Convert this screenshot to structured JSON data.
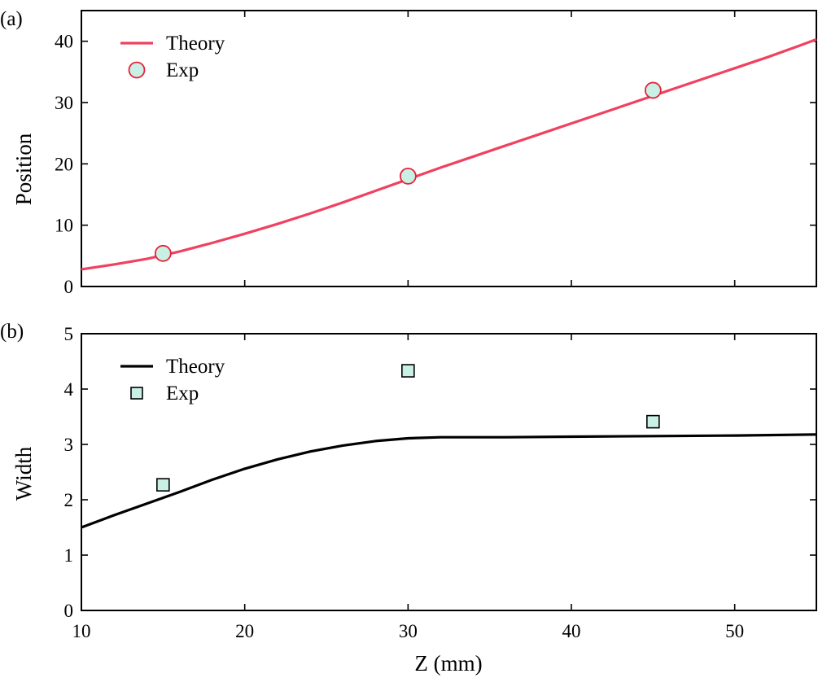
{
  "chart_data": [
    {
      "type": "line",
      "panel_label": "(a)",
      "xlabel": "",
      "ylabel": "Position",
      "xlim": [
        10,
        55
      ],
      "ylim": [
        0,
        45
      ],
      "xticks": [
        10,
        20,
        30,
        40,
        50
      ],
      "yticks": [
        0,
        10,
        20,
        30,
        40
      ],
      "legend_position": "top-left",
      "grid": false,
      "series": [
        {
          "name": "Theory",
          "kind": "line",
          "color": "#f0415f",
          "x": [
            10,
            12,
            14,
            16,
            18,
            20,
            22,
            24,
            26,
            28,
            30,
            32,
            34,
            36,
            38,
            40,
            42,
            44,
            46,
            48,
            50,
            52,
            54,
            55
          ],
          "y": [
            2.8,
            3.6,
            4.5,
            5.7,
            7.1,
            8.6,
            10.2,
            11.9,
            13.7,
            15.6,
            17.5,
            19.4,
            21.2,
            23.0,
            24.8,
            26.6,
            28.4,
            30.2,
            32.0,
            33.8,
            35.6,
            37.4,
            39.3,
            40.3
          ]
        },
        {
          "name": "Exp",
          "kind": "scatter",
          "marker": "circle",
          "color": "#e8203a",
          "fill": "#c8f0e4",
          "x": [
            15,
            30,
            45
          ],
          "y": [
            5.4,
            18.0,
            32.0
          ]
        }
      ]
    },
    {
      "type": "line",
      "panel_label": "(b)",
      "xlabel": "Z (mm)",
      "ylabel": "Width",
      "xlim": [
        10,
        55
      ],
      "ylim": [
        0,
        5
      ],
      "xticks": [
        10,
        20,
        30,
        40,
        50
      ],
      "yticks": [
        0,
        1,
        2,
        3,
        4,
        5
      ],
      "legend_position": "top-left",
      "grid": false,
      "series": [
        {
          "name": "Theory",
          "kind": "line",
          "color": "#000000",
          "x": [
            10,
            12,
            14,
            16,
            18,
            20,
            22,
            24,
            26,
            28,
            30,
            32,
            34,
            36,
            40,
            45,
            50,
            55
          ],
          "y": [
            1.5,
            1.72,
            1.93,
            2.14,
            2.36,
            2.56,
            2.73,
            2.87,
            2.98,
            3.06,
            3.11,
            3.13,
            3.13,
            3.13,
            3.14,
            3.15,
            3.16,
            3.18
          ]
        },
        {
          "name": "Exp",
          "kind": "scatter",
          "marker": "square",
          "color": "#000000",
          "fill": "#c8f0e4",
          "x": [
            15,
            30,
            45
          ],
          "y": [
            2.27,
            4.33,
            3.41
          ]
        }
      ]
    }
  ]
}
